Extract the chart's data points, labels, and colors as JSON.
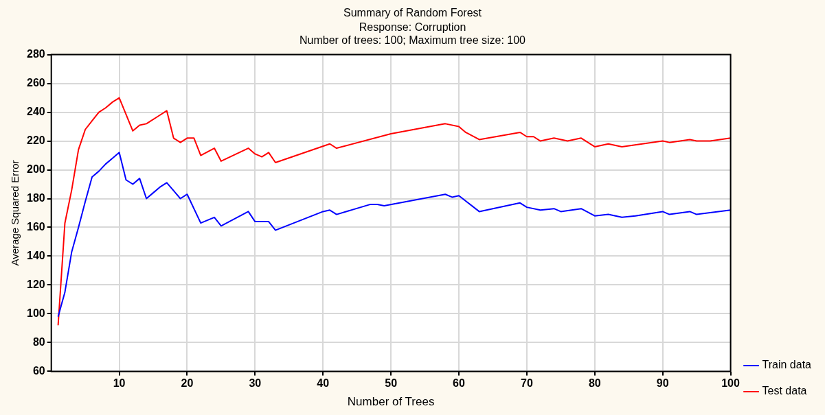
{
  "chart_data": {
    "type": "line",
    "title": "Summary of Random Forest",
    "subtitle": "Response: Corruption",
    "annotations": [
      "Number of trees: 100; Maximum tree size: 100"
    ],
    "xlabel": "Number of Trees",
    "ylabel": "Average Squared Error",
    "xlim": [
      0,
      100
    ],
    "xticks": [
      10,
      20,
      30,
      40,
      50,
      60,
      70,
      80,
      90,
      100
    ],
    "ylim": [
      60,
      280
    ],
    "yticks": [
      60,
      80,
      100,
      120,
      140,
      160,
      180,
      200,
      220,
      240,
      260,
      280
    ],
    "grid": true,
    "legend": "bottom right",
    "marker": "none",
    "line_style": "solid",
    "series": [
      {
        "name": "Train data",
        "color": "#0000ff",
        "x": [
          1,
          2,
          3,
          4,
          5,
          6,
          7,
          8,
          9,
          10,
          11,
          12,
          13,
          14,
          15,
          16,
          17,
          19,
          20,
          22,
          24,
          25,
          29,
          30,
          32,
          33,
          40,
          41,
          42,
          47,
          48,
          49,
          58,
          59,
          60,
          63,
          67,
          69,
          70,
          72,
          74,
          75,
          78,
          80,
          82,
          84,
          86,
          90,
          91,
          94,
          95,
          100
        ],
        "values": [
          98,
          115,
          143,
          160,
          178,
          195,
          199,
          204,
          208,
          212,
          193,
          190,
          194,
          180,
          184,
          188,
          191,
          180,
          183,
          163,
          167,
          161,
          171,
          164,
          164,
          158,
          171,
          172,
          169,
          176,
          176,
          175,
          183,
          181,
          182,
          171,
          175,
          177,
          174,
          172,
          173,
          171,
          173,
          168,
          169,
          167,
          168,
          171,
          169,
          171,
          169,
          172
        ]
      },
      {
        "name": "Test data",
        "color": "#ff0000",
        "x": [
          1,
          2,
          3,
          4,
          5,
          6,
          7,
          8,
          9,
          10,
          12,
          13,
          14,
          16,
          17,
          18,
          19,
          20,
          21,
          22,
          24,
          25,
          29,
          30,
          31,
          32,
          33,
          41,
          42,
          50,
          58,
          60,
          61,
          63,
          69,
          70,
          71,
          72,
          74,
          76,
          78,
          80,
          82,
          84,
          90,
          91,
          94,
          95,
          97,
          100
        ],
        "values": [
          92,
          163,
          186,
          214,
          228,
          234,
          240,
          243,
          247,
          250,
          227,
          231,
          232,
          238,
          241,
          222,
          219,
          222,
          222,
          210,
          215,
          206,
          215,
          211,
          209,
          212,
          205,
          218,
          215,
          225,
          232,
          230,
          226,
          221,
          226,
          223,
          223,
          220,
          222,
          220,
          222,
          216,
          218,
          216,
          220,
          219,
          221,
          220,
          220,
          222
        ]
      }
    ]
  }
}
